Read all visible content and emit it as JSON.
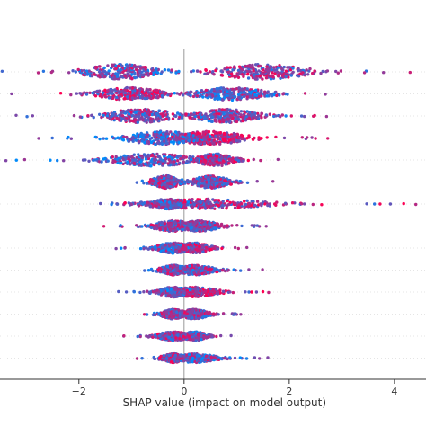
{
  "chart_data": {
    "type": "scatter",
    "subtype": "beeswarm",
    "xlabel": "SHAP value (impact on model output)",
    "xlim": [
      -3.5,
      4.6
    ],
    "xticks": [
      -2,
      0,
      2,
      4
    ],
    "xtick_labels": [
      "−2",
      "0",
      "2",
      "4"
    ],
    "zero_line": true,
    "row_gridlines": "dashed",
    "colors": {
      "low": "#008bfb",
      "high": "#ff0052",
      "zero_line": "#999999",
      "axis": "#333333",
      "grid": "#cccccc"
    },
    "color_meaning": "feature value, low (blue) to high (pink)",
    "rows": [
      {
        "min": -3.6,
        "max": 4.5,
        "left_peak": -1.2,
        "right_peak": 1.5,
        "height": 0.85,
        "color_bias": 0.55
      },
      {
        "min": -3.3,
        "max": 3.3,
        "left_peak": -1.0,
        "right_peak": 0.9,
        "height": 0.7,
        "color_bias": 0.4
      },
      {
        "min": -3.3,
        "max": 2.9,
        "left_peak": -0.8,
        "right_peak": 0.8,
        "height": 0.75,
        "color_bias": 0.5
      },
      {
        "min": -2.9,
        "max": 2.8,
        "left_peak": -0.4,
        "right_peak": 0.5,
        "height": 0.75,
        "color_bias": 0.75
      },
      {
        "min": -3.4,
        "max": 1.8,
        "left_peak": -0.6,
        "right_peak": 0.6,
        "height": 0.7,
        "color_bias": 0.6
      },
      {
        "min": -1.3,
        "max": 1.7,
        "left_peak": -0.35,
        "right_peak": 0.5,
        "height": 0.7,
        "color_bias": 0.5
      },
      {
        "min": -1.7,
        "max": 4.6,
        "left_peak": -0.3,
        "right_peak": 0.4,
        "height": 0.55,
        "color_bias": 0.6
      },
      {
        "min": -1.6,
        "max": 1.6,
        "left_peak": -0.2,
        "right_peak": 0.3,
        "height": 0.6,
        "color_bias": 0.5
      },
      {
        "min": -1.3,
        "max": 1.2,
        "left_peak": -0.2,
        "right_peak": 0.2,
        "height": 0.6,
        "color_bias": 0.6
      },
      {
        "min": -1.1,
        "max": 1.5,
        "left_peak": -0.2,
        "right_peak": 0.2,
        "height": 0.55,
        "color_bias": 0.5
      },
      {
        "min": -1.3,
        "max": 1.7,
        "left_peak": -0.2,
        "right_peak": 0.2,
        "height": 0.55,
        "color_bias": 0.65
      },
      {
        "min": -0.8,
        "max": 1.1,
        "left_peak": -0.2,
        "right_peak": 0.2,
        "height": 0.55,
        "color_bias": 0.5
      },
      {
        "min": -1.3,
        "max": 0.9,
        "left_peak": -0.2,
        "right_peak": 0.2,
        "height": 0.5,
        "color_bias": 0.45
      },
      {
        "min": -0.9,
        "max": 1.6,
        "left_peak": -0.2,
        "right_peak": 0.2,
        "height": 0.5,
        "color_bias": 0.4
      }
    ]
  }
}
